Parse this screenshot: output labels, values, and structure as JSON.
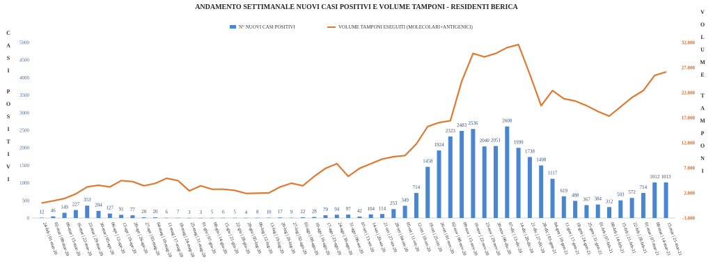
{
  "chart_data": {
    "type": "bar+line",
    "title": "ANDAMENTO SETTIMANALE NUOVI CASI POSITIVI E VOLUME TAMPONI - RESIDENTI BERICA",
    "ylabel_left": "CASI POSITIVI",
    "ylabel_right": "VOLUME TAMPONI",
    "legend_position": "top-center",
    "ylim_left": [
      0,
      5000
    ],
    "yticks_left": [
      "0",
      "500",
      "1000",
      "1500",
      "2000",
      "2500",
      "3000",
      "3500",
      "4000",
      "4500",
      "5000"
    ],
    "ylim_right": [
      -3000,
      32000
    ],
    "yticks_right": [
      "-3.000",
      "2.000",
      "7.000",
      "12.000",
      "17.000",
      "22.000",
      "27.000",
      "32.000"
    ],
    "colors": {
      "bars": "#4a86d0",
      "line": "#e0782e"
    },
    "categories": [
      "24-feb | 01-mar-20",
      "02-mar | 08-mar-20",
      "09-mar | 15-mar-20",
      "16-mar | 22-mar-20",
      "23-mar | 29-mar-20",
      "30-mar | 05-apr-20",
      "06-apr | 12-apr-20",
      "13-apr | 19-apr-20",
      "20-apr | 26-apr-20",
      "27-apr | 03-mag-20",
      "04-mag | 10-mag-20",
      "11-mag | 17-mag-20",
      "18-mag | 24-mag-20",
      "25-mag | 31-mag-20",
      "01-giu | 07-giu-20",
      "08-giu | 14-giu-20",
      "15-giu | 21-giu-20",
      "22-giu | 28-giu-20",
      "29-giu | 05-lug-20",
      "06-lug | 12-lug-20",
      "13-lug | 19-lug-20",
      "20-lug | 26-lug-20",
      "27-lug | 02-ago-20",
      "03-ago | 09-ago-20",
      "10-ago | 16-ago-20",
      "17-ago | 23-ago-20",
      "24-ago | 30-ago-20",
      "31-ago | 06-set-20",
      "07-set | 13-set-20",
      "14-set | 20-set-20",
      "21-set | 27-set-20",
      "28-set | 04-ott-20",
      "05-ott | 11-ott-20",
      "12-ott | 18-ott-20",
      "19-ott | 25-ott-20",
      "26-ott | 01-nov-20",
      "02-nov | 08-nov-20",
      "09-nov | 15-nov-20",
      "16-nov | 22-nov-20",
      "23-nov | 29-nov-20",
      "30-nov | 06-dic-20",
      "07-dic | 13-dic-20",
      "14-dic | 20-dic-20",
      "21-dic | 27-dic-20",
      "28-dic | 03-gen-21",
      "04-gen | 10-gen-21",
      "11-gen | 17-gen-21",
      "18-gen | 24-gen-21",
      "25-gen | 31-gen-21",
      "01-feb | 07-feb-21",
      "08-feb | 14-feb-21",
      "15-feb | 21-feb-21",
      "22-feb | 28-feb-21",
      "01-mar | 07-mar-21",
      "08-mar | 14-mar-21",
      "15-mar | 21-mar-21"
    ],
    "series": [
      {
        "name": "N° NUOVI CASI POSITIVI",
        "type": "bar",
        "axis": "left",
        "values": [
          12,
          46,
          149,
          227,
          353,
          204,
          127,
          91,
          77,
          20,
          20,
          6,
          7,
          3,
          3,
          5,
          6,
          5,
          4,
          8,
          10,
          17,
          9,
          22,
          28,
          79,
          94,
          97,
          42,
          104,
          114,
          253,
          349,
          714,
          1458,
          1924,
          2323,
          2483,
          2536,
          2040,
          2051,
          2608,
          1999,
          1738,
          1498,
          1117,
          619,
          488,
          367,
          384,
          312,
          503,
          572,
          714,
          1012,
          1013
        ]
      },
      {
        "name": "VOLUME TAMPONI ESEGUITI (MOLECOLARI+ANTIGENICI)",
        "type": "line",
        "axis": "right",
        "values": [
          0,
          430,
          890,
          1820,
          3210,
          3530,
          3210,
          4460,
          4260,
          3430,
          3900,
          4920,
          4460,
          2420,
          3430,
          2740,
          2740,
          2510,
          1900,
          1950,
          2000,
          3200,
          3950,
          3430,
          5290,
          6900,
          7830,
          5300,
          6900,
          7830,
          8770,
          9220,
          9460,
          11770,
          15240,
          16030,
          16400,
          24270,
          29820,
          29130,
          29820,
          30990,
          31590,
          25660,
          19400,
          22420,
          20790,
          20340,
          19400,
          18250,
          17320,
          19180,
          21030,
          22420,
          25430,
          26130
        ]
      }
    ]
  }
}
